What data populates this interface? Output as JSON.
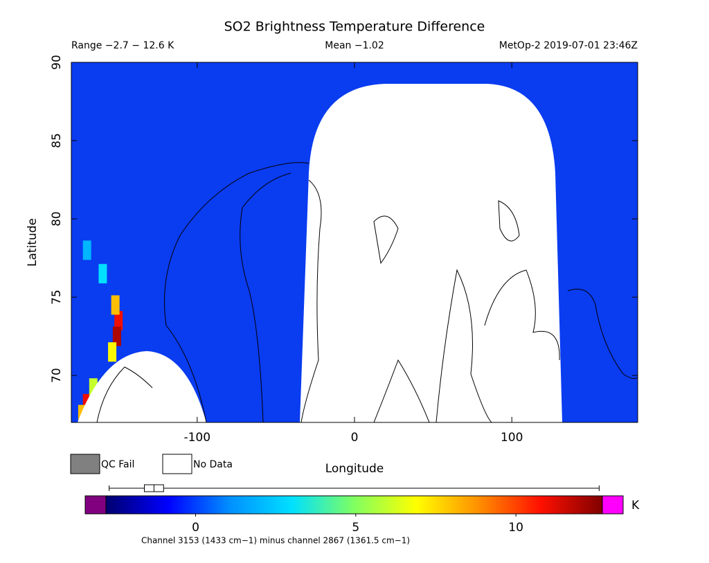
{
  "chart_data": {
    "type": "heatmap",
    "title": "SO2 Brightness Temperature Difference",
    "subtitle_left": "Range −2.7 − 12.6 K",
    "subtitle_center": "Mean −1.02",
    "subtitle_right": "MetOp-2 2019-07-01 23:46Z",
    "x_label": "Longitude",
    "y_label": "Latitude",
    "xlim": [
      -180,
      180
    ],
    "ylim": [
      67,
      90
    ],
    "xticks": [
      -100,
      0,
      100
    ],
    "yticks": [
      70,
      75,
      80,
      85,
      90
    ],
    "background_color": "#0a3cf0",
    "cells": [
      {
        "lon": -150,
        "lat": 73.5,
        "value": 11
      },
      {
        "lon": -151,
        "lat": 72.5,
        "value": 12
      },
      {
        "lon": -152,
        "lat": 74.5,
        "value": 8
      },
      {
        "lon": -154,
        "lat": 71.5,
        "value": 7
      },
      {
        "lon": -170,
        "lat": 68.2,
        "value": 11
      },
      {
        "lon": -173,
        "lat": 67.5,
        "value": 8
      },
      {
        "lon": -166,
        "lat": 69.2,
        "value": 6
      },
      {
        "lon": -160,
        "lat": 76.5,
        "value": 3
      },
      {
        "lon": -170,
        "lat": 78,
        "value": 2
      }
    ],
    "legend": [
      {
        "name": "QC Fail",
        "color": "#808080"
      },
      {
        "name": "No Data",
        "color": "#ffffff"
      }
    ],
    "colorbar": {
      "clim": [
        -2.8,
        12.7
      ],
      "ticks": [
        0,
        5,
        10
      ],
      "unit": "K",
      "under_color": "#800080",
      "over_color": "#ff00ff",
      "colormap": [
        "#00006e",
        "#0000ff",
        "#0090ff",
        "#00e0ff",
        "#80ff60",
        "#ffff00",
        "#ff9000",
        "#ff1000",
        "#800000"
      ],
      "box": {
        "min": -2.7,
        "q1": -1.6,
        "median": -1.3,
        "q3": -1.0,
        "max": 12.6
      },
      "caption": "Channel 3153 (1433 cm−1) minus channel 2867 (1361.5 cm−1)"
    }
  }
}
